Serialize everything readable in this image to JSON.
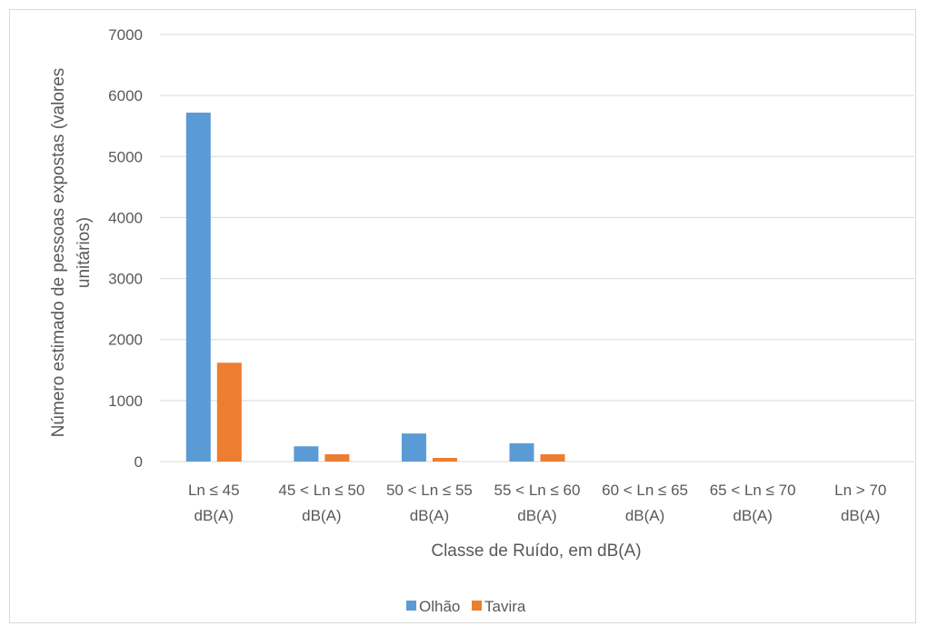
{
  "chart_data": {
    "type": "bar",
    "categories": [
      [
        "Ln ≤ 45",
        "dB(A)"
      ],
      [
        "45 < Ln ≤ 50",
        "dB(A)"
      ],
      [
        "50 < Ln ≤ 55",
        "dB(A)"
      ],
      [
        "55 < Ln ≤ 60",
        "dB(A)"
      ],
      [
        "60 < Ln ≤ 65",
        "dB(A)"
      ],
      [
        "65 < Ln ≤ 70",
        "dB(A)"
      ],
      [
        "Ln > 70",
        "dB(A)"
      ]
    ],
    "series": [
      {
        "name": "Olhão",
        "color": "#5b9bd5",
        "values": [
          5720,
          250,
          460,
          300,
          0,
          0,
          0
        ]
      },
      {
        "name": "Tavira",
        "color": "#ed7d31",
        "values": [
          1620,
          120,
          60,
          120,
          0,
          0,
          0
        ]
      }
    ],
    "xlabel": "Classe de Ruído, em dB(A)",
    "ylabel": [
      "Número estimado de pessoas expostas (valores",
      "unitários)"
    ],
    "ylim": [
      0,
      7000
    ],
    "yticks": [
      0,
      1000,
      2000,
      3000,
      4000,
      5000,
      6000,
      7000
    ],
    "grid": true,
    "legend_position": "bottom"
  }
}
